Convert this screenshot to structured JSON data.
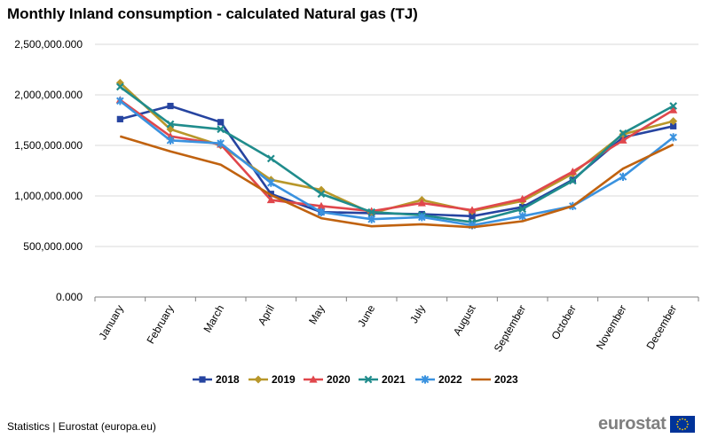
{
  "title": "Monthly Inland consumption - calculated Natural gas (TJ)",
  "footer": {
    "source": "Statistics | Eurostat (europa.eu)"
  },
  "logo": {
    "text": "eurostat"
  },
  "colors": {
    "flag_blue": "#003399",
    "flag_star": "#ffcc00",
    "grid": "#d9d9d9",
    "axis": "#7f7f7f"
  },
  "chart_data": {
    "type": "line",
    "title": "Monthly Inland consumption - calculated Natural gas (TJ)",
    "xlabel": "",
    "ylabel": "",
    "ylim": [
      0,
      2500000
    ],
    "yticks": [
      0,
      500000,
      1000000,
      1500000,
      2000000,
      2500000
    ],
    "ytick_labels": [
      "0.000",
      "500,000.000",
      "1,000,000.000",
      "1,500,000.000",
      "2,000,000.000",
      "2,500,000.000"
    ],
    "grid": true,
    "legend_position": "bottom",
    "categories": [
      "January",
      "February",
      "March",
      "April",
      "May",
      "June",
      "July",
      "August",
      "September",
      "October",
      "November",
      "December"
    ],
    "series": [
      {
        "name": "2018",
        "color": "#2644a0",
        "marker": "square",
        "values": [
          1760000,
          1890000,
          1730000,
          1020000,
          840000,
          830000,
          820000,
          800000,
          890000,
          1160000,
          1580000,
          1690000
        ]
      },
      {
        "name": "2019",
        "color": "#b8972a",
        "marker": "diamond",
        "values": [
          2120000,
          1660000,
          1500000,
          1160000,
          1060000,
          830000,
          960000,
          850000,
          950000,
          1220000,
          1610000,
          1740000
        ]
      },
      {
        "name": "2020",
        "color": "#e0474c",
        "marker": "triangle",
        "values": [
          1950000,
          1590000,
          1510000,
          960000,
          900000,
          850000,
          930000,
          860000,
          970000,
          1240000,
          1550000,
          1850000
        ]
      },
      {
        "name": "2021",
        "color": "#208c8c",
        "marker": "x",
        "values": [
          2080000,
          1710000,
          1660000,
          1370000,
          1020000,
          840000,
          810000,
          740000,
          870000,
          1150000,
          1620000,
          1890000
        ]
      },
      {
        "name": "2022",
        "color": "#3a92df",
        "marker": "star",
        "values": [
          1940000,
          1550000,
          1520000,
          1130000,
          840000,
          770000,
          790000,
          710000,
          800000,
          900000,
          1190000,
          1580000
        ]
      },
      {
        "name": "2023",
        "color": "#c0620f",
        "marker": "none",
        "values": [
          1590000,
          1440000,
          1310000,
          1010000,
          780000,
          700000,
          720000,
          690000,
          750000,
          900000,
          1270000,
          1510000
        ]
      }
    ]
  }
}
